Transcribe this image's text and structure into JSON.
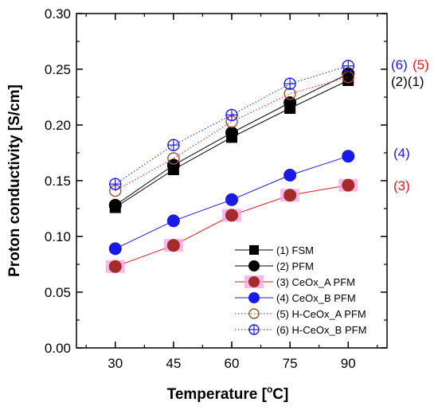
{
  "chart_data": {
    "type": "line",
    "x": [
      30,
      45,
      60,
      75,
      90
    ],
    "xlabel_main": "Temperature [",
    "xlabel_sup": "o",
    "xlabel_end": "C]",
    "ylabel": "Proton conductivity [S/cm]",
    "xlim": [
      20,
      100
    ],
    "ylim": [
      0.0,
      0.3
    ],
    "xticks": [
      "30",
      "45",
      "60",
      "75",
      "90"
    ],
    "yticks": [
      "0.00",
      "0.05",
      "0.10",
      "0.15",
      "0.20",
      "0.25",
      "0.30"
    ],
    "grid": false,
    "legend_position": "bottom-right",
    "series": [
      {
        "name": "(1) FSM",
        "values": [
          0.126,
          0.16,
          0.189,
          0.215,
          0.24
        ],
        "color": "#000000",
        "line": "solid",
        "marker": "square-filled"
      },
      {
        "name": "(2) PFM",
        "values": [
          0.128,
          0.164,
          0.193,
          0.22,
          0.246
        ],
        "color": "#000000",
        "line": "solid",
        "marker": "circle-filled"
      },
      {
        "name": "(3) CeOx_A PFM",
        "values": [
          0.073,
          0.092,
          0.119,
          0.137,
          0.146
        ],
        "color": "#e8141b",
        "fill": "#a52a2a",
        "line": "solid",
        "marker": "circle-filled",
        "highlight": "#f7a6e6"
      },
      {
        "name": "(4) CeOx_B PFM",
        "values": [
          0.089,
          0.114,
          0.133,
          0.155,
          0.172
        ],
        "color": "#1a1ae6",
        "fill": "#1a1ae6",
        "line": "solid",
        "marker": "circle-filled"
      },
      {
        "name": "(5) H-CeOx_A PFM",
        "values": [
          0.141,
          0.17,
          0.203,
          0.228,
          0.243
        ],
        "color": "#e8141b",
        "stroke": "#a0522d",
        "line": "dotted",
        "marker": "circle-open"
      },
      {
        "name": "(6) H-CeOx_B PFM",
        "values": [
          0.147,
          0.182,
          0.209,
          0.237,
          0.253
        ],
        "color": "#1a1ae6",
        "stroke": "#1a1ae6",
        "line": "dotted",
        "marker": "circle-crosshair"
      }
    ],
    "annotations": {
      "a65_blue": "(6)",
      "a65_red": "(5)",
      "a21": "(2)(1)",
      "a4": "(4)",
      "a3": "(3)",
      "color_blue": "#1a1ae6",
      "color_red": "#e8141b",
      "color_black": "#000000"
    }
  }
}
